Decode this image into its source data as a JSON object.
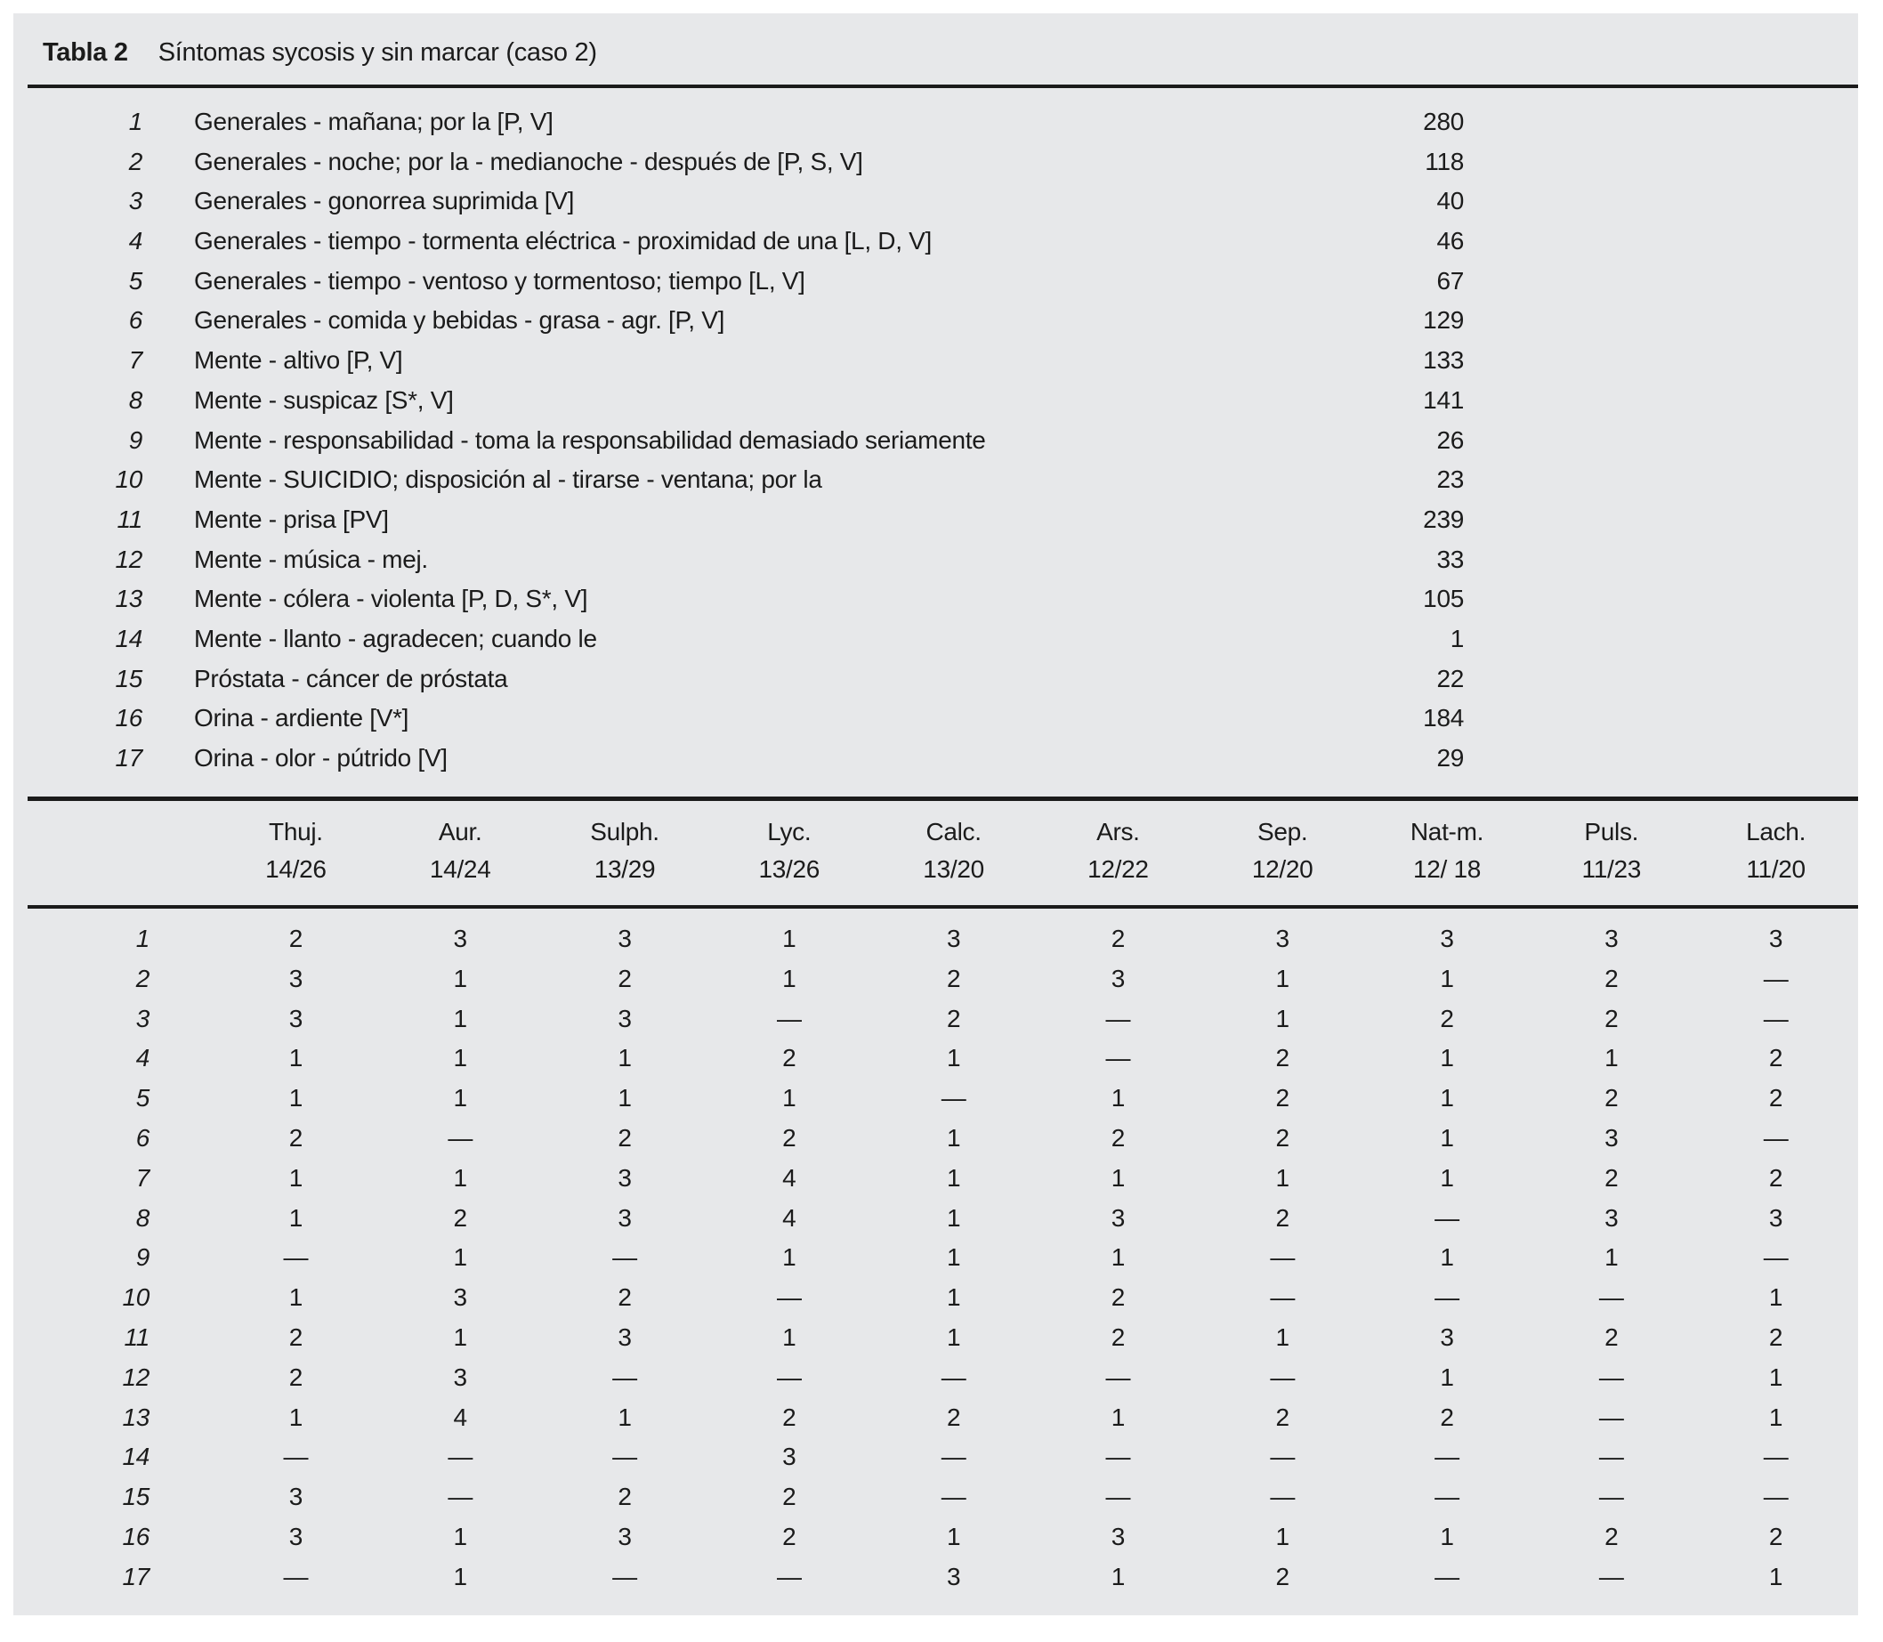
{
  "table": {
    "label": "Tabla 2",
    "title": "Síntomas sycosis y sin marcar (caso 2)"
  },
  "symptoms": [
    {
      "num": "1",
      "text": "Generales - mañana; por la [P, V]",
      "count": "280"
    },
    {
      "num": "2",
      "text": "Generales - noche; por la - medianoche - después de [P, S, V]",
      "count": "118"
    },
    {
      "num": "3",
      "text": "Generales - gonorrea suprimida [V]",
      "count": "40"
    },
    {
      "num": "4",
      "text": "Generales - tiempo - tormenta eléctrica - proximidad de una [L, D, V]",
      "count": "46"
    },
    {
      "num": "5",
      "text": "Generales - tiempo - ventoso y tormentoso; tiempo [L, V]",
      "count": "67"
    },
    {
      "num": "6",
      "text": "Generales - comida y bebidas - grasa - agr. [P, V]",
      "count": "129"
    },
    {
      "num": "7",
      "text": "Mente - altivo [P, V]",
      "count": "133"
    },
    {
      "num": "8",
      "text": "Mente - suspicaz [S*, V]",
      "count": "141"
    },
    {
      "num": "9",
      "text": "Mente - responsabilidad - toma la responsabilidad demasiado seriamente",
      "count": "26"
    },
    {
      "num": "10",
      "text": "Mente - SUICIDIO; disposición al - tirarse - ventana; por la",
      "count": "23"
    },
    {
      "num": "11",
      "text": "Mente - prisa [PV]",
      "count": "239"
    },
    {
      "num": "12",
      "text": "Mente - música - mej.",
      "count": "33"
    },
    {
      "num": "13",
      "text": "Mente - cólera - violenta [P, D, S*, V]",
      "count": "105"
    },
    {
      "num": "14",
      "text": "Mente - llanto - agradecen; cuando le",
      "count": "1"
    },
    {
      "num": "15",
      "text": "Próstata - cáncer de próstata",
      "count": "22"
    },
    {
      "num": "16",
      "text": "Orina - ardiente [V*]",
      "count": "184"
    },
    {
      "num": "17",
      "text": "Orina - olor - pútrido [V]",
      "count": "29"
    }
  ],
  "remedy_columns": [
    {
      "name": "Thuj.",
      "ratio": "14/26"
    },
    {
      "name": "Aur.",
      "ratio": "14/24"
    },
    {
      "name": "Sulph.",
      "ratio": "13/29"
    },
    {
      "name": "Lyc.",
      "ratio": "13/26"
    },
    {
      "name": "Calc.",
      "ratio": "13/20"
    },
    {
      "name": "Ars.",
      "ratio": "12/22"
    },
    {
      "name": "Sep.",
      "ratio": "12/20"
    },
    {
      "name": "Nat-m.",
      "ratio": "12/ 18"
    },
    {
      "name": "Puls.",
      "ratio": "11/23"
    },
    {
      "name": "Lach.",
      "ratio": "11/20"
    }
  ],
  "matrix": [
    {
      "num": "1",
      "values": [
        "2",
        "3",
        "3",
        "1",
        "3",
        "2",
        "3",
        "3",
        "3",
        "3"
      ]
    },
    {
      "num": "2",
      "values": [
        "3",
        "1",
        "2",
        "1",
        "2",
        "3",
        "1",
        "1",
        "2",
        "—"
      ]
    },
    {
      "num": "3",
      "values": [
        "3",
        "1",
        "3",
        "—",
        "2",
        "—",
        "1",
        "2",
        "2",
        "—"
      ]
    },
    {
      "num": "4",
      "values": [
        "1",
        "1",
        "1",
        "2",
        "1",
        "—",
        "2",
        "1",
        "1",
        "2"
      ]
    },
    {
      "num": "5",
      "values": [
        "1",
        "1",
        "1",
        "1",
        "—",
        "1",
        "2",
        "1",
        "2",
        "2"
      ]
    },
    {
      "num": "6",
      "values": [
        "2",
        "—",
        "2",
        "2",
        "1",
        "2",
        "2",
        "1",
        "3",
        "—"
      ]
    },
    {
      "num": "7",
      "values": [
        "1",
        "1",
        "3",
        "4",
        "1",
        "1",
        "1",
        "1",
        "2",
        "2"
      ]
    },
    {
      "num": "8",
      "values": [
        "1",
        "2",
        "3",
        "4",
        "1",
        "3",
        "2",
        "—",
        "3",
        "3"
      ]
    },
    {
      "num": "9",
      "values": [
        "—",
        "1",
        "—",
        "1",
        "1",
        "1",
        "—",
        "1",
        "1",
        "—"
      ]
    },
    {
      "num": "10",
      "values": [
        "1",
        "3",
        "2",
        "—",
        "1",
        "2",
        "—",
        "—",
        "—",
        "1"
      ]
    },
    {
      "num": "11",
      "values": [
        "2",
        "1",
        "3",
        "1",
        "1",
        "2",
        "1",
        "3",
        "2",
        "2"
      ]
    },
    {
      "num": "12",
      "values": [
        "2",
        "3",
        "—",
        "—",
        "—",
        "—",
        "—",
        "1",
        "—",
        "1"
      ]
    },
    {
      "num": "13",
      "values": [
        "1",
        "4",
        "1",
        "2",
        "2",
        "1",
        "2",
        "2",
        "—",
        "1"
      ]
    },
    {
      "num": "14",
      "values": [
        "—",
        "—",
        "—",
        "3",
        "—",
        "—",
        "—",
        "—",
        "—",
        "—"
      ]
    },
    {
      "num": "15",
      "values": [
        "3",
        "—",
        "2",
        "2",
        "—",
        "—",
        "—",
        "—",
        "—",
        "—"
      ]
    },
    {
      "num": "16",
      "values": [
        "3",
        "1",
        "3",
        "2",
        "1",
        "3",
        "1",
        "1",
        "2",
        "2"
      ]
    },
    {
      "num": "17",
      "values": [
        "—",
        "1",
        "—",
        "—",
        "3",
        "1",
        "2",
        "—",
        "—",
        "1"
      ]
    }
  ],
  "colors": {
    "panel_bg": "#e7e8ea",
    "ink": "#1b1b1b"
  }
}
